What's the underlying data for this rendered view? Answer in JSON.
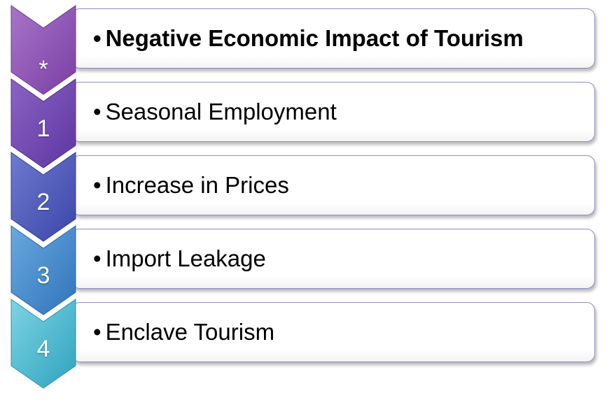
{
  "rows": [
    {
      "marker": "*",
      "text": "Negative Economic Impact of Tourism",
      "chevron_color": "#8a4fb0",
      "header": true
    },
    {
      "marker": "1",
      "text": "Seasonal Employment",
      "chevron_color": "#6b3fab",
      "header": false
    },
    {
      "marker": "2",
      "text": "Increase in Prices",
      "chevron_color": "#4a52b5",
      "header": false
    },
    {
      "marker": "3",
      "text": "Import Leakage",
      "chevron_color": "#3f86c8",
      "header": false
    },
    {
      "marker": "4",
      "text": "Enclave Tourism",
      "chevron_color": "#3fb4cc",
      "header": false
    }
  ],
  "bullet": "•"
}
